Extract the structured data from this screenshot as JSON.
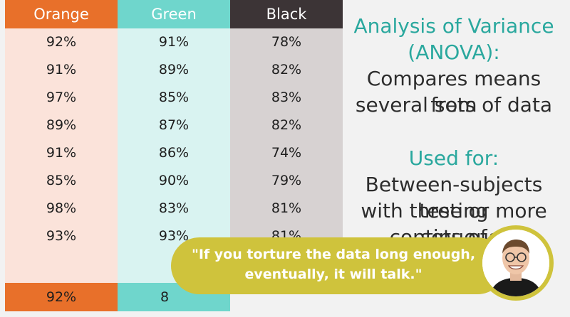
{
  "colors": {
    "orange_header": "#e8702a",
    "orange_body": "#fbe3da",
    "green_header": "#6fd6cc",
    "green_body": "#d9f3f1",
    "black_header": "#3c3436",
    "black_body": "#d7d2d2",
    "accent_teal": "#2aa89e",
    "bubble_yellow": "#cfc33c"
  },
  "table": {
    "columns": [
      {
        "header": "Orange",
        "values": [
          "92%",
          "91%",
          "97%",
          "89%",
          "91%",
          "85%",
          "98%",
          "93%"
        ],
        "footer": "92%"
      },
      {
        "header": "Green",
        "values": [
          "91%",
          "89%",
          "85%",
          "87%",
          "86%",
          "90%",
          "83%",
          "93%"
        ],
        "footer": "8"
      },
      {
        "header": "Black",
        "values": [
          "78%",
          "82%",
          "83%",
          "82%",
          "74%",
          "79%",
          "81%",
          "81%"
        ],
        "footer": ""
      }
    ]
  },
  "side_text": {
    "title_line1": "Analysis of Variance",
    "title_line2": "(ANOVA):",
    "desc_line1": "Compares means from",
    "desc_line2": "several sets of data",
    "used_for": "Used for:",
    "use_line1": "Between-subjects testing",
    "use_line2": "with three or more sets of",
    "use_line3": "continuous d"
  },
  "quote": {
    "line1": "\"If you torture the data long enough,",
    "line2": "eventually, it will talk.\""
  },
  "presenter": {
    "icon": "presenter-avatar"
  }
}
